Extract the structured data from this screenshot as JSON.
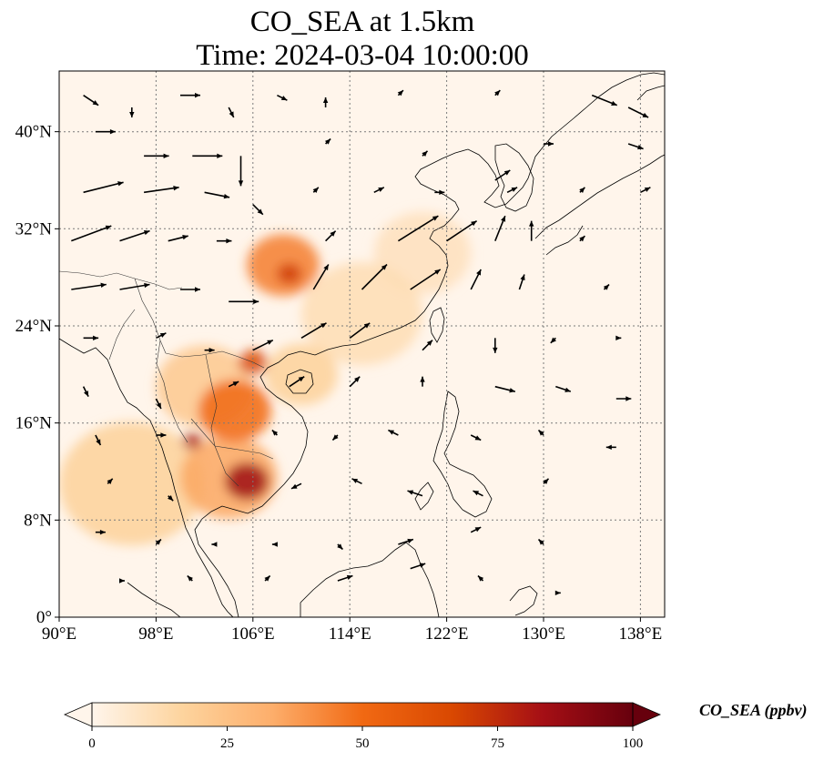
{
  "title_line1": "CO_SEA at 1.5km",
  "title_line2": "Time: 2024-03-04 10:00:00",
  "colorbar": {
    "label": "CO_SEA (ppbv)",
    "ticks": [
      "0",
      "25",
      "50",
      "75",
      "100"
    ],
    "min": 0,
    "max": 100,
    "colors": [
      "#fff5eb",
      "#fdd49e",
      "#fdae6b",
      "#f16913",
      "#d94801",
      "#a50f15",
      "#67000d"
    ]
  },
  "map": {
    "lon_range": [
      90,
      140
    ],
    "lat_range": [
      0,
      45
    ],
    "x_ticks": [
      "90°E",
      "98°E",
      "106°E",
      "114°E",
      "122°E",
      "130°E",
      "138°E"
    ],
    "y_ticks": [
      "0°",
      "8°N",
      "16°N",
      "24°N",
      "32°N",
      "40°N"
    ],
    "x_tick_values": [
      90,
      98,
      106,
      114,
      122,
      130,
      138
    ],
    "y_tick_values": [
      0,
      8,
      16,
      24,
      32,
      40
    ],
    "grid": true,
    "background_color": "#fff5eb"
  },
  "chart_data": {
    "type": "heatmap",
    "title": "CO_SEA at 1.5km",
    "subtitle": "Time: 2024-03-04 10:00:00",
    "xlabel": "",
    "ylabel": "",
    "xlim": [
      90,
      140
    ],
    "ylim": [
      0,
      45
    ],
    "plumes": [
      {
        "lon": 108.5,
        "lat": 29.0,
        "radius_deg": 3.0,
        "value": 45
      },
      {
        "lon": 109.0,
        "lat": 28.3,
        "radius_deg": 1.0,
        "value": 70
      },
      {
        "lon": 106.0,
        "lat": 21.0,
        "radius_deg": 1.2,
        "value": 65
      },
      {
        "lon": 104.5,
        "lat": 17.0,
        "radius_deg": 3.0,
        "value": 50
      },
      {
        "lon": 101.0,
        "lat": 14.5,
        "radius_deg": 0.8,
        "value": 80
      },
      {
        "lon": 105.5,
        "lat": 11.2,
        "radius_deg": 1.8,
        "value": 85
      },
      {
        "lon": 104.0,
        "lat": 11.5,
        "radius_deg": 4.0,
        "value": 35
      },
      {
        "lon": 96.0,
        "lat": 11.0,
        "radius_deg": 6.0,
        "value": 18
      },
      {
        "lon": 102.0,
        "lat": 19.0,
        "radius_deg": 4.0,
        "value": 22
      },
      {
        "lon": 110.0,
        "lat": 20.0,
        "radius_deg": 3.0,
        "value": 18
      },
      {
        "lon": 115.0,
        "lat": 25.0,
        "radius_deg": 5.0,
        "value": 12
      },
      {
        "lon": 120.0,
        "lat": 30.0,
        "radius_deg": 4.0,
        "value": 10
      }
    ],
    "wind_vectors": [
      {
        "lon": 92,
        "lat": 43,
        "u": 3,
        "v": -2
      },
      {
        "lon": 96,
        "lat": 42,
        "u": 0,
        "v": -2
      },
      {
        "lon": 100,
        "lat": 43,
        "u": 4,
        "v": 0
      },
      {
        "lon": 104,
        "lat": 42,
        "u": 1,
        "v": -2
      },
      {
        "lon": 108,
        "lat": 43,
        "u": 2,
        "v": -1
      },
      {
        "lon": 112,
        "lat": 42,
        "u": 0,
        "v": 2
      },
      {
        "lon": 118,
        "lat": 43,
        "u": 1,
        "v": 1
      },
      {
        "lon": 126,
        "lat": 43,
        "u": 1,
        "v": 1
      },
      {
        "lon": 134,
        "lat": 43,
        "u": 5,
        "v": -2
      },
      {
        "lon": 137,
        "lat": 42,
        "u": 4,
        "v": -2
      },
      {
        "lon": 93,
        "lat": 40,
        "u": 4,
        "v": 0
      },
      {
        "lon": 97,
        "lat": 38,
        "u": 5,
        "v": 0
      },
      {
        "lon": 101,
        "lat": 38,
        "u": 6,
        "v": 0
      },
      {
        "lon": 105,
        "lat": 38,
        "u": 0,
        "v": -6
      },
      {
        "lon": 112,
        "lat": 39,
        "u": 1,
        "v": 1
      },
      {
        "lon": 120,
        "lat": 38,
        "u": 1,
        "v": 1
      },
      {
        "lon": 126,
        "lat": 36,
        "u": 3,
        "v": 2
      },
      {
        "lon": 130,
        "lat": 39,
        "u": 2,
        "v": 0
      },
      {
        "lon": 137,
        "lat": 39,
        "u": 3,
        "v": -1
      },
      {
        "lon": 92,
        "lat": 35,
        "u": 8,
        "v": 2
      },
      {
        "lon": 97,
        "lat": 35,
        "u": 7,
        "v": 1
      },
      {
        "lon": 102,
        "lat": 35,
        "u": 5,
        "v": -1
      },
      {
        "lon": 106,
        "lat": 34,
        "u": 2,
        "v": -2
      },
      {
        "lon": 111,
        "lat": 35,
        "u": 1,
        "v": 1
      },
      {
        "lon": 116,
        "lat": 35,
        "u": 2,
        "v": 1
      },
      {
        "lon": 121,
        "lat": 35,
        "u": 2,
        "v": 0
      },
      {
        "lon": 127,
        "lat": 35,
        "u": 2,
        "v": 1
      },
      {
        "lon": 133,
        "lat": 35,
        "u": 1,
        "v": 1
      },
      {
        "lon": 138,
        "lat": 35,
        "u": 2,
        "v": 1
      },
      {
        "lon": 91,
        "lat": 31,
        "u": 8,
        "v": 3
      },
      {
        "lon": 95,
        "lat": 31,
        "u": 6,
        "v": 2
      },
      {
        "lon": 99,
        "lat": 31,
        "u": 4,
        "v": 1
      },
      {
        "lon": 103,
        "lat": 31,
        "u": 3,
        "v": 0
      },
      {
        "lon": 112,
        "lat": 31,
        "u": 2,
        "v": 2
      },
      {
        "lon": 118,
        "lat": 31,
        "u": 8,
        "v": 5
      },
      {
        "lon": 122,
        "lat": 31,
        "u": 6,
        "v": 4
      },
      {
        "lon": 126,
        "lat": 31,
        "u": 2,
        "v": 5
      },
      {
        "lon": 129,
        "lat": 31,
        "u": 0,
        "v": 4
      },
      {
        "lon": 133,
        "lat": 31,
        "u": 1,
        "v": 1
      },
      {
        "lon": 91,
        "lat": 27,
        "u": 7,
        "v": 1
      },
      {
        "lon": 95,
        "lat": 27,
        "u": 6,
        "v": 1
      },
      {
        "lon": 100,
        "lat": 27,
        "u": 4,
        "v": 0
      },
      {
        "lon": 104,
        "lat": 26,
        "u": 6,
        "v": 0
      },
      {
        "lon": 111,
        "lat": 27,
        "u": 3,
        "v": 5
      },
      {
        "lon": 115,
        "lat": 27,
        "u": 5,
        "v": 5
      },
      {
        "lon": 119,
        "lat": 27,
        "u": 6,
        "v": 4
      },
      {
        "lon": 124,
        "lat": 27,
        "u": 2,
        "v": 4
      },
      {
        "lon": 128,
        "lat": 27,
        "u": 1,
        "v": 3
      },
      {
        "lon": 135,
        "lat": 27,
        "u": 1,
        "v": 1
      },
      {
        "lon": 92,
        "lat": 23,
        "u": 3,
        "v": 0
      },
      {
        "lon": 98,
        "lat": 23,
        "u": 2,
        "v": 1
      },
      {
        "lon": 102,
        "lat": 22,
        "u": 2,
        "v": 0
      },
      {
        "lon": 106,
        "lat": 22,
        "u": 4,
        "v": 2
      },
      {
        "lon": 110,
        "lat": 23,
        "u": 5,
        "v": 3
      },
      {
        "lon": 114,
        "lat": 23,
        "u": 4,
        "v": 3
      },
      {
        "lon": 120,
        "lat": 22,
        "u": 2,
        "v": 2
      },
      {
        "lon": 126,
        "lat": 23,
        "u": 0,
        "v": -3
      },
      {
        "lon": 131,
        "lat": 23,
        "u": -1,
        "v": -1
      },
      {
        "lon": 136,
        "lat": 23,
        "u": 1,
        "v": 0
      },
      {
        "lon": 92,
        "lat": 19,
        "u": 1,
        "v": -2
      },
      {
        "lon": 98,
        "lat": 18,
        "u": 1,
        "v": -2
      },
      {
        "lon": 104,
        "lat": 19,
        "u": 2,
        "v": 1
      },
      {
        "lon": 109,
        "lat": 19,
        "u": 3,
        "v": 2
      },
      {
        "lon": 114,
        "lat": 19,
        "u": 2,
        "v": 2
      },
      {
        "lon": 120,
        "lat": 19,
        "u": 0,
        "v": 2
      },
      {
        "lon": 126,
        "lat": 19,
        "u": 4,
        "v": -1
      },
      {
        "lon": 131,
        "lat": 19,
        "u": 3,
        "v": -1
      },
      {
        "lon": 136,
        "lat": 18,
        "u": 3,
        "v": 0
      },
      {
        "lon": 93,
        "lat": 15,
        "u": 1,
        "v": -2
      },
      {
        "lon": 98,
        "lat": 15,
        "u": 2,
        "v": 0
      },
      {
        "lon": 108,
        "lat": 15,
        "u": -1,
        "v": 1
      },
      {
        "lon": 113,
        "lat": 15,
        "u": -1,
        "v": -1
      },
      {
        "lon": 118,
        "lat": 15,
        "u": -2,
        "v": 1
      },
      {
        "lon": 124,
        "lat": 15,
        "u": 2,
        "v": -1
      },
      {
        "lon": 130,
        "lat": 15,
        "u": -1,
        "v": 1
      },
      {
        "lon": 136,
        "lat": 14,
        "u": -2,
        "v": 0
      },
      {
        "lon": 94,
        "lat": 11,
        "u": 1,
        "v": 1
      },
      {
        "lon": 99,
        "lat": 10,
        "u": 1,
        "v": -1
      },
      {
        "lon": 110,
        "lat": 11,
        "u": -2,
        "v": -1
      },
      {
        "lon": 115,
        "lat": 11,
        "u": -2,
        "v": 1
      },
      {
        "lon": 120,
        "lat": 10,
        "u": -3,
        "v": 1
      },
      {
        "lon": 125,
        "lat": 10,
        "u": -2,
        "v": 1
      },
      {
        "lon": 130,
        "lat": 11,
        "u": 1,
        "v": 1
      },
      {
        "lon": 93,
        "lat": 7,
        "u": 2,
        "v": 0
      },
      {
        "lon": 98,
        "lat": 6,
        "u": 1,
        "v": 1
      },
      {
        "lon": 103,
        "lat": 6,
        "u": -1,
        "v": 0
      },
      {
        "lon": 108,
        "lat": 6,
        "u": -1,
        "v": 0
      },
      {
        "lon": 113,
        "lat": 6,
        "u": 1,
        "v": -1
      },
      {
        "lon": 118,
        "lat": 6,
        "u": 3,
        "v": 1
      },
      {
        "lon": 124,
        "lat": 7,
        "u": 2,
        "v": 1
      },
      {
        "lon": 130,
        "lat": 6,
        "u": -1,
        "v": 1
      },
      {
        "lon": 95,
        "lat": 3,
        "u": 1,
        "v": 0
      },
      {
        "lon": 101,
        "lat": 3,
        "u": -1,
        "v": 1
      },
      {
        "lon": 107,
        "lat": 3,
        "u": 1,
        "v": 1
      },
      {
        "lon": 113,
        "lat": 3,
        "u": 3,
        "v": 1
      },
      {
        "lon": 119,
        "lat": 4,
        "u": 3,
        "v": 1
      },
      {
        "lon": 125,
        "lat": 3,
        "u": -1,
        "v": 1
      },
      {
        "lon": 131,
        "lat": 2,
        "u": 1,
        "v": 0
      }
    ]
  }
}
